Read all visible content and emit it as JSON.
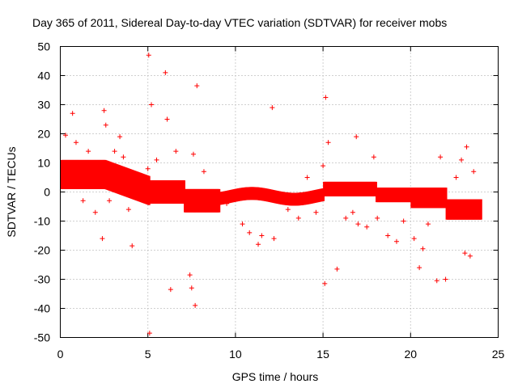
{
  "chart_data": {
    "type": "scatter",
    "title": "Day 365 of 2011, Sidereal Day-to-day VTEC variation (SDTVAR) for receiver mobs",
    "xlabel": "GPS time / hours",
    "ylabel": "SDTVAR / TECUs",
    "xlim": [
      0,
      25
    ],
    "ylim": [
      -50,
      50
    ],
    "xticks": [
      0,
      5,
      10,
      15,
      20,
      25
    ],
    "yticks": [
      -50,
      -40,
      -30,
      -20,
      -10,
      0,
      10,
      20,
      30,
      40,
      50
    ],
    "xtick_labels": [
      "0",
      "5",
      "10",
      "15",
      "20",
      "25"
    ],
    "ytick_labels": [
      "-50",
      "-40",
      "-30",
      "-20",
      "-10",
      "0",
      "10",
      "20",
      "30",
      "40",
      "50"
    ],
    "grid": true,
    "marker": "+",
    "color": "#ff0000",
    "series": [
      {
        "name": "SDTVAR",
        "x": [
          0.3,
          0.6,
          0.7,
          0.9,
          1.3,
          1.6,
          2.0,
          2.4,
          2.5,
          2.6,
          2.8,
          3.1,
          3.4,
          3.6,
          3.9,
          4.1,
          4.6,
          5.0,
          5.05,
          5.1,
          5.2,
          5.5,
          6.0,
          6.1,
          6.3,
          6.6,
          7.0,
          7.4,
          7.5,
          7.6,
          7.7,
          7.8,
          8.2,
          8.9,
          9.5,
          10.4,
          10.8,
          11.3,
          11.5,
          12.1,
          12.2,
          12.4,
          13.0,
          13.6,
          14.1,
          14.6,
          15.0,
          15.1,
          15.15,
          15.3,
          15.8,
          16.3,
          16.7,
          16.9,
          17.0,
          17.5,
          17.9,
          18.1,
          18.7,
          19.2,
          19.6,
          20.2,
          20.5,
          20.7,
          21.0,
          21.5,
          21.7,
          22.0,
          22.6,
          22.9,
          23.1,
          23.2,
          23.4,
          23.6
        ],
        "y": [
          19.5,
          4,
          27,
          17,
          -3,
          14,
          -7,
          -16,
          28,
          23,
          -3,
          14,
          19,
          12,
          -6,
          -18.5,
          3,
          8,
          47,
          -48.5,
          30,
          11,
          41,
          25,
          -33.5,
          14,
          3,
          -28.5,
          -33,
          13,
          -39,
          36.5,
          7,
          -6,
          -4,
          -11,
          -14,
          -18,
          -15,
          29,
          -16,
          -1,
          -6,
          -9,
          5,
          -7,
          9,
          -31.5,
          32.5,
          17,
          -26.5,
          -9,
          -7,
          19,
          -11,
          -12,
          12,
          -9,
          -15,
          -17,
          -10,
          -16,
          -26,
          -19.5,
          -11,
          -30.5,
          12,
          -30,
          5,
          11,
          -21,
          15.5,
          -22,
          7
        ]
      }
    ]
  }
}
